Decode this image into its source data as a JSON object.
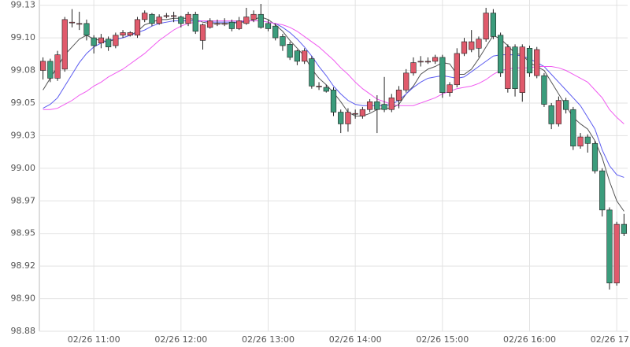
{
  "chart_data": {
    "type": "candlestick",
    "categories": [
      null,
      null,
      null,
      null,
      null,
      null,
      null,
      "02/26 11:00",
      null,
      null,
      null,
      null,
      null,
      null,
      null,
      null,
      null,
      null,
      null,
      "02/26 12:00",
      null,
      null,
      null,
      null,
      null,
      null,
      null,
      null,
      null,
      null,
      null,
      "02/26 13:00",
      null,
      null,
      null,
      null,
      null,
      null,
      null,
      null,
      null,
      null,
      null,
      "02/26 14:00",
      null,
      null,
      null,
      null,
      null,
      null,
      null,
      null,
      null,
      null,
      null,
      "02/26 15:00",
      null,
      null,
      null,
      null,
      null,
      null,
      null,
      null,
      null,
      null,
      null,
      "02/26 16:00",
      null,
      null,
      null,
      null,
      null,
      null,
      null,
      null,
      null,
      null,
      null,
      "02/26 17:00",
      null
    ],
    "open": [
      99.075,
      99.082,
      99.069,
      99.076,
      99.112,
      99.111,
      99.111,
      99.1,
      99.096,
      99.099,
      99.094,
      99.102,
      99.102,
      99.102,
      99.114,
      99.118,
      99.111,
      99.117,
      99.117,
      99.116,
      99.111,
      99.118,
      99.098,
      99.108,
      99.111,
      99.111,
      99.112,
      99.107,
      99.111,
      99.114,
      99.118,
      99.111,
      99.109,
      99.101,
      99.095,
      99.09,
      99.082,
      99.084,
      99.063,
      99.062,
      99.06,
      99.043,
      99.034,
      99.042,
      99.04,
      99.045,
      99.051,
      99.049,
      99.045,
      99.052,
      99.06,
      99.073,
      99.082,
      99.082,
      99.082,
      99.085,
      99.058,
      99.064,
      99.088,
      99.091,
      99.092,
      99.099,
      99.119,
      99.102,
      99.061,
      99.093,
      99.058,
      99.092,
      99.071,
      99.071,
      99.048,
      99.034,
      99.052,
      99.045,
      99.017,
      99.024,
      99.019,
      98.998,
      98.968,
      98.912,
      98.957
    ],
    "high": [
      99.085,
      99.084,
      99.09,
      99.116,
      99.122,
      99.12,
      99.114,
      99.102,
      99.103,
      99.101,
      99.104,
      99.106,
      99.105,
      99.116,
      99.121,
      99.119,
      99.118,
      99.119,
      99.12,
      99.117,
      99.12,
      99.12,
      99.111,
      99.115,
      99.114,
      99.115,
      99.114,
      99.116,
      99.123,
      99.121,
      99.126,
      99.114,
      99.111,
      99.103,
      99.097,
      99.091,
      99.092,
      99.086,
      99.066,
      99.064,
      99.062,
      99.045,
      99.046,
      99.045,
      99.047,
      99.053,
      99.056,
      99.07,
      99.057,
      99.063,
      99.076,
      99.085,
      99.086,
      99.085,
      99.087,
      99.087,
      99.066,
      99.092,
      99.1,
      99.106,
      99.101,
      99.123,
      99.122,
      99.104,
      99.095,
      99.095,
      99.095,
      99.094,
      99.093,
      99.073,
      99.05,
      99.055,
      99.054,
      99.047,
      99.027,
      99.026,
      99.021,
      99.0,
      98.97,
      98.959,
      98.965
    ],
    "low": [
      99.068,
      99.066,
      99.067,
      99.074,
      99.108,
      99.106,
      99.098,
      99.088,
      99.092,
      99.09,
      99.092,
      99.1,
      99.101,
      99.1,
      99.112,
      99.109,
      99.11,
      99.115,
      99.112,
      99.108,
      99.109,
      99.103,
      99.091,
      99.107,
      99.109,
      99.109,
      99.105,
      99.106,
      99.11,
      99.112,
      99.107,
      99.105,
      99.098,
      99.09,
      99.083,
      99.079,
      99.08,
      99.061,
      99.06,
      99.058,
      99.04,
      99.027,
      99.028,
      99.038,
      99.038,
      99.043,
      99.027,
      99.043,
      99.043,
      99.046,
      99.058,
      99.071,
      99.078,
      99.08,
      99.08,
      99.054,
      99.055,
      99.062,
      99.086,
      99.089,
      99.085,
      99.097,
      99.099,
      99.07,
      99.058,
      99.055,
      99.051,
      99.07,
      99.069,
      99.047,
      99.03,
      99.032,
      99.042,
      99.014,
      99.015,
      99.012,
      98.996,
      98.963,
      98.907,
      98.91,
      98.948
    ],
    "close": [
      99.082,
      99.069,
      99.087,
      99.114,
      99.112,
      99.111,
      99.102,
      99.094,
      99.1,
      99.093,
      99.102,
      99.104,
      99.104,
      99.114,
      99.119,
      99.111,
      99.116,
      99.117,
      99.117,
      99.111,
      99.118,
      99.105,
      99.11,
      99.113,
      99.111,
      99.111,
      99.107,
      99.113,
      99.116,
      99.118,
      99.108,
      99.107,
      99.1,
      99.094,
      99.085,
      99.082,
      99.09,
      99.063,
      99.063,
      99.059,
      99.043,
      99.034,
      99.043,
      99.042,
      99.045,
      99.051,
      99.045,
      99.045,
      99.054,
      99.06,
      99.073,
      99.081,
      99.082,
      99.082,
      99.085,
      99.058,
      99.064,
      99.088,
      99.097,
      99.097,
      99.099,
      99.119,
      99.101,
      99.073,
      99.093,
      99.061,
      99.093,
      99.073,
      99.091,
      99.049,
      99.034,
      99.052,
      99.045,
      99.017,
      99.024,
      99.019,
      98.998,
      98.968,
      98.912,
      98.957,
      98.95
    ],
    "up_color": "#e05a6c",
    "down_color": "#3b9c7c",
    "lines": [
      {
        "color": "#555555",
        "values": [
          99.06,
          99.069,
          99.078,
          99.087,
          99.093,
          99.099,
          99.102,
          99.099,
          99.098,
          99.097,
          99.099,
          99.1,
          99.102,
          99.105,
          99.11,
          99.112,
          99.114,
          99.114,
          99.115,
          99.115,
          99.115,
          99.114,
          99.112,
          99.111,
          99.111,
          99.111,
          99.111,
          99.112,
          99.112,
          99.114,
          99.116,
          99.114,
          99.11,
          99.105,
          99.098,
          99.092,
          99.086,
          99.076,
          99.069,
          99.064,
          99.058,
          99.051,
          99.043,
          99.04,
          99.04,
          99.042,
          99.045,
          99.046,
          99.046,
          99.049,
          99.057,
          99.063,
          99.072,
          99.076,
          99.078,
          99.081,
          99.08,
          99.072,
          99.072,
          99.076,
          99.084,
          99.093,
          99.102,
          99.099,
          99.094,
          99.088,
          99.087,
          99.081,
          99.078,
          99.075,
          99.066,
          99.057,
          99.048,
          99.039,
          99.034,
          99.03,
          99.021,
          99.008,
          98.99,
          98.975,
          98.967
        ]
      },
      {
        "color": "#5b5bf0",
        "values": [
          99.046,
          99.049,
          99.054,
          99.063,
          99.072,
          99.081,
          99.088,
          99.093,
          99.096,
          99.098,
          99.099,
          99.1,
          99.102,
          99.104,
          99.106,
          99.109,
          99.111,
          99.112,
          99.113,
          99.113,
          99.113,
          99.113,
          99.113,
          99.112,
          99.112,
          99.112,
          99.112,
          99.112,
          99.113,
          99.113,
          99.113,
          99.112,
          99.111,
          99.108,
          99.104,
          99.099,
          99.093,
          99.086,
          99.078,
          99.071,
          99.063,
          99.057,
          99.052,
          99.049,
          99.048,
          99.048,
          99.048,
          99.048,
          99.049,
          99.052,
          99.057,
          99.062,
          99.066,
          99.069,
          99.07,
          99.071,
          99.07,
          99.069,
          99.07,
          99.074,
          99.078,
          99.082,
          99.086,
          99.087,
          99.087,
          99.087,
          99.086,
          99.084,
          99.081,
          99.078,
          99.072,
          99.066,
          99.06,
          99.054,
          99.048,
          99.039,
          99.03,
          99.014,
          99.002,
          98.995,
          98.993
        ]
      },
      {
        "color": "#f05af0",
        "values": [
          99.045,
          99.045,
          99.046,
          99.049,
          99.052,
          99.056,
          99.059,
          99.063,
          99.066,
          99.07,
          99.073,
          99.076,
          99.08,
          99.084,
          99.088,
          99.093,
          99.098,
          99.102,
          99.106,
          99.109,
          99.111,
          99.112,
          99.113,
          99.113,
          99.113,
          99.113,
          99.113,
          99.113,
          99.113,
          99.113,
          99.113,
          99.112,
          99.111,
          99.11,
          99.108,
          99.105,
          99.101,
          99.097,
          99.093,
          99.088,
          99.083,
          99.077,
          99.072,
          99.066,
          99.061,
          99.057,
          99.053,
          99.051,
          99.049,
          99.048,
          99.048,
          99.048,
          99.05,
          99.052,
          99.054,
          99.057,
          99.059,
          99.061,
          99.062,
          99.063,
          99.065,
          99.068,
          99.072,
          99.075,
          99.076,
          99.077,
          99.077,
          99.077,
          99.078,
          99.078,
          99.078,
          99.077,
          99.075,
          99.072,
          99.069,
          99.066,
          99.06,
          99.054,
          99.045,
          99.039,
          99.034
        ]
      }
    ],
    "ylim": [
      98.875,
      99.129
    ],
    "yticks": [
      {
        "value": 98.875,
        "label": "98.88"
      },
      {
        "value": 98.9,
        "label": "98.90"
      },
      {
        "value": 98.925,
        "label": "98.92"
      },
      {
        "value": 98.95,
        "label": "98.95"
      },
      {
        "value": 98.975,
        "label": "98.97"
      },
      {
        "value": 99.0,
        "label": "99.00"
      },
      {
        "value": 99.025,
        "label": "99.03"
      },
      {
        "value": 99.05,
        "label": "99.05"
      },
      {
        "value": 99.075,
        "label": "99.08"
      },
      {
        "value": 99.1,
        "label": "99.10"
      },
      {
        "value": 99.125,
        "label": "99.13"
      }
    ],
    "grid": true
  }
}
